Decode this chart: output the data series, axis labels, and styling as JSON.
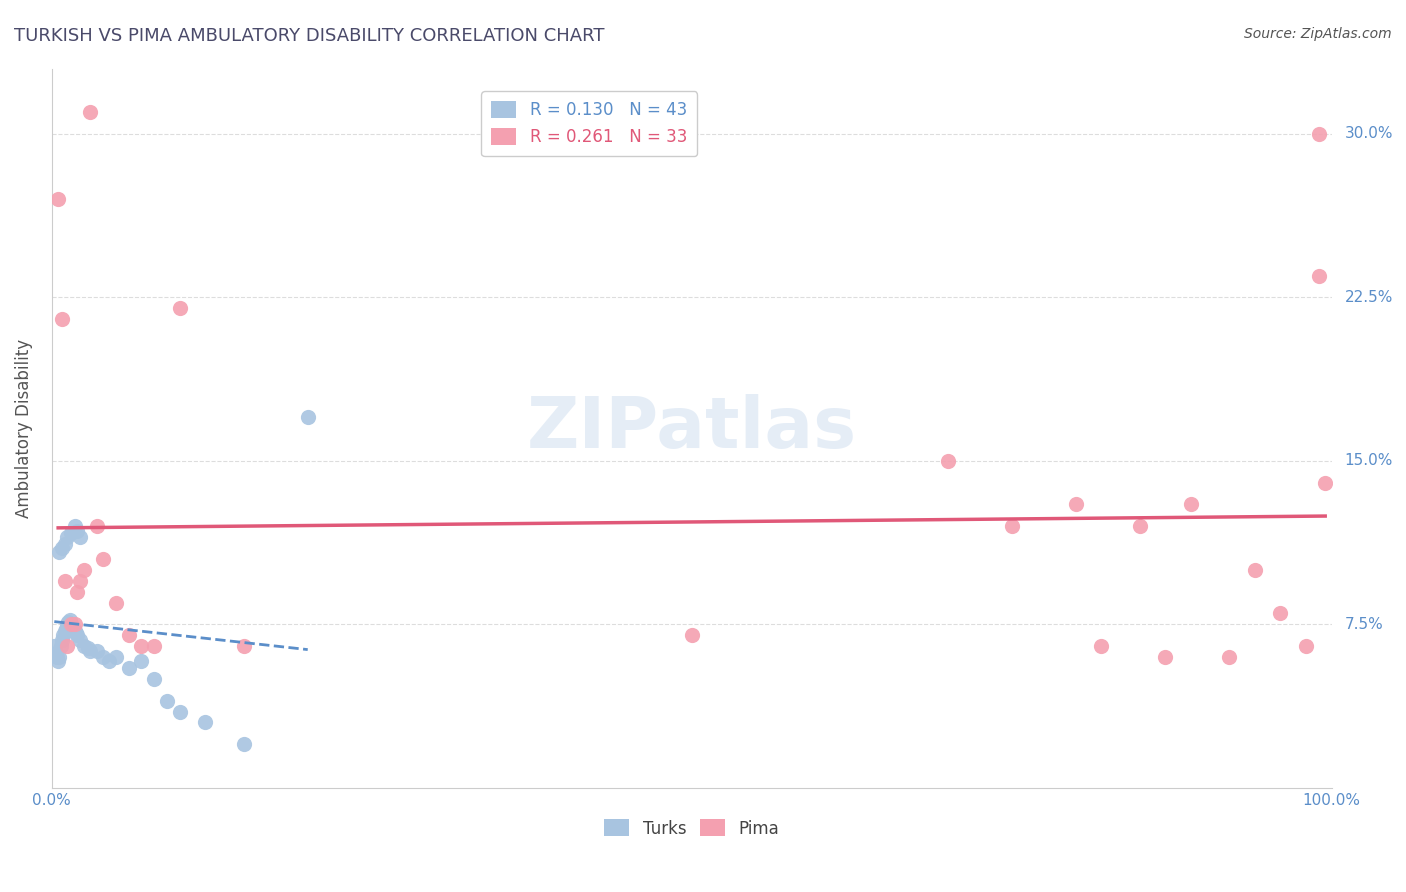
{
  "title": "TURKISH VS PIMA AMBULATORY DISABILITY CORRELATION CHART",
  "source": "Source: ZipAtlas.com",
  "ylabel": "Ambulatory Disability",
  "xlabel": "",
  "xlim": [
    0.0,
    1.0
  ],
  "ylim": [
    0.0,
    0.33
  ],
  "x_ticks": [
    0.0,
    1.0
  ],
  "x_tick_labels": [
    "0.0%",
    "100.0%"
  ],
  "y_ticks": [
    0.075,
    0.15,
    0.225,
    0.3
  ],
  "y_tick_labels": [
    "7.5%",
    "15.0%",
    "22.5%",
    "30.0%"
  ],
  "turks_color": "#a8c4e0",
  "pima_color": "#f4a0b0",
  "turks_line_color": "#5b8ec9",
  "pima_line_color": "#e05878",
  "R_turks": 0.13,
  "N_turks": 43,
  "R_pima": 0.261,
  "N_pima": 33,
  "legend_label_turks": "R = 0.130   N = 43",
  "legend_label_pima": "R = 0.261   N = 33",
  "turks_x": [
    0.002,
    0.003,
    0.004,
    0.005,
    0.006,
    0.007,
    0.008,
    0.009,
    0.01,
    0.011,
    0.012,
    0.013,
    0.014,
    0.015,
    0.016,
    0.017,
    0.018,
    0.019,
    0.02,
    0.022,
    0.025,
    0.028,
    0.03,
    0.035,
    0.04,
    0.045,
    0.05,
    0.06,
    0.07,
    0.08,
    0.09,
    0.1,
    0.12,
    0.15,
    0.006,
    0.008,
    0.01,
    0.012,
    0.015,
    0.02,
    0.018,
    0.022,
    0.2
  ],
  "turks_y": [
    0.065,
    0.062,
    0.06,
    0.058,
    0.06,
    0.065,
    0.068,
    0.07,
    0.072,
    0.073,
    0.075,
    0.076,
    0.077,
    0.075,
    0.074,
    0.073,
    0.072,
    0.071,
    0.07,
    0.068,
    0.065,
    0.064,
    0.063,
    0.063,
    0.06,
    0.058,
    0.06,
    0.055,
    0.058,
    0.05,
    0.04,
    0.035,
    0.03,
    0.02,
    0.108,
    0.11,
    0.112,
    0.115,
    0.117,
    0.118,
    0.12,
    0.115,
    0.17
  ],
  "pima_x": [
    0.005,
    0.008,
    0.01,
    0.012,
    0.015,
    0.018,
    0.02,
    0.022,
    0.025,
    0.03,
    0.035,
    0.04,
    0.05,
    0.06,
    0.07,
    0.08,
    0.5,
    0.7,
    0.75,
    0.8,
    0.82,
    0.85,
    0.87,
    0.89,
    0.92,
    0.94,
    0.96,
    0.98,
    0.99,
    0.995,
    0.15,
    0.1,
    0.99
  ],
  "pima_y": [
    0.27,
    0.215,
    0.095,
    0.065,
    0.075,
    0.075,
    0.09,
    0.095,
    0.1,
    0.31,
    0.12,
    0.105,
    0.085,
    0.07,
    0.065,
    0.065,
    0.07,
    0.15,
    0.12,
    0.13,
    0.065,
    0.12,
    0.06,
    0.13,
    0.06,
    0.1,
    0.08,
    0.065,
    0.235,
    0.14,
    0.065,
    0.22,
    0.3
  ],
  "watermark": "ZIPatlas",
  "background_color": "#ffffff",
  "grid_color": "#dddddd",
  "title_color": "#4a4a6a",
  "axis_label_color": "#5b8ec9",
  "source_color": "#555555"
}
